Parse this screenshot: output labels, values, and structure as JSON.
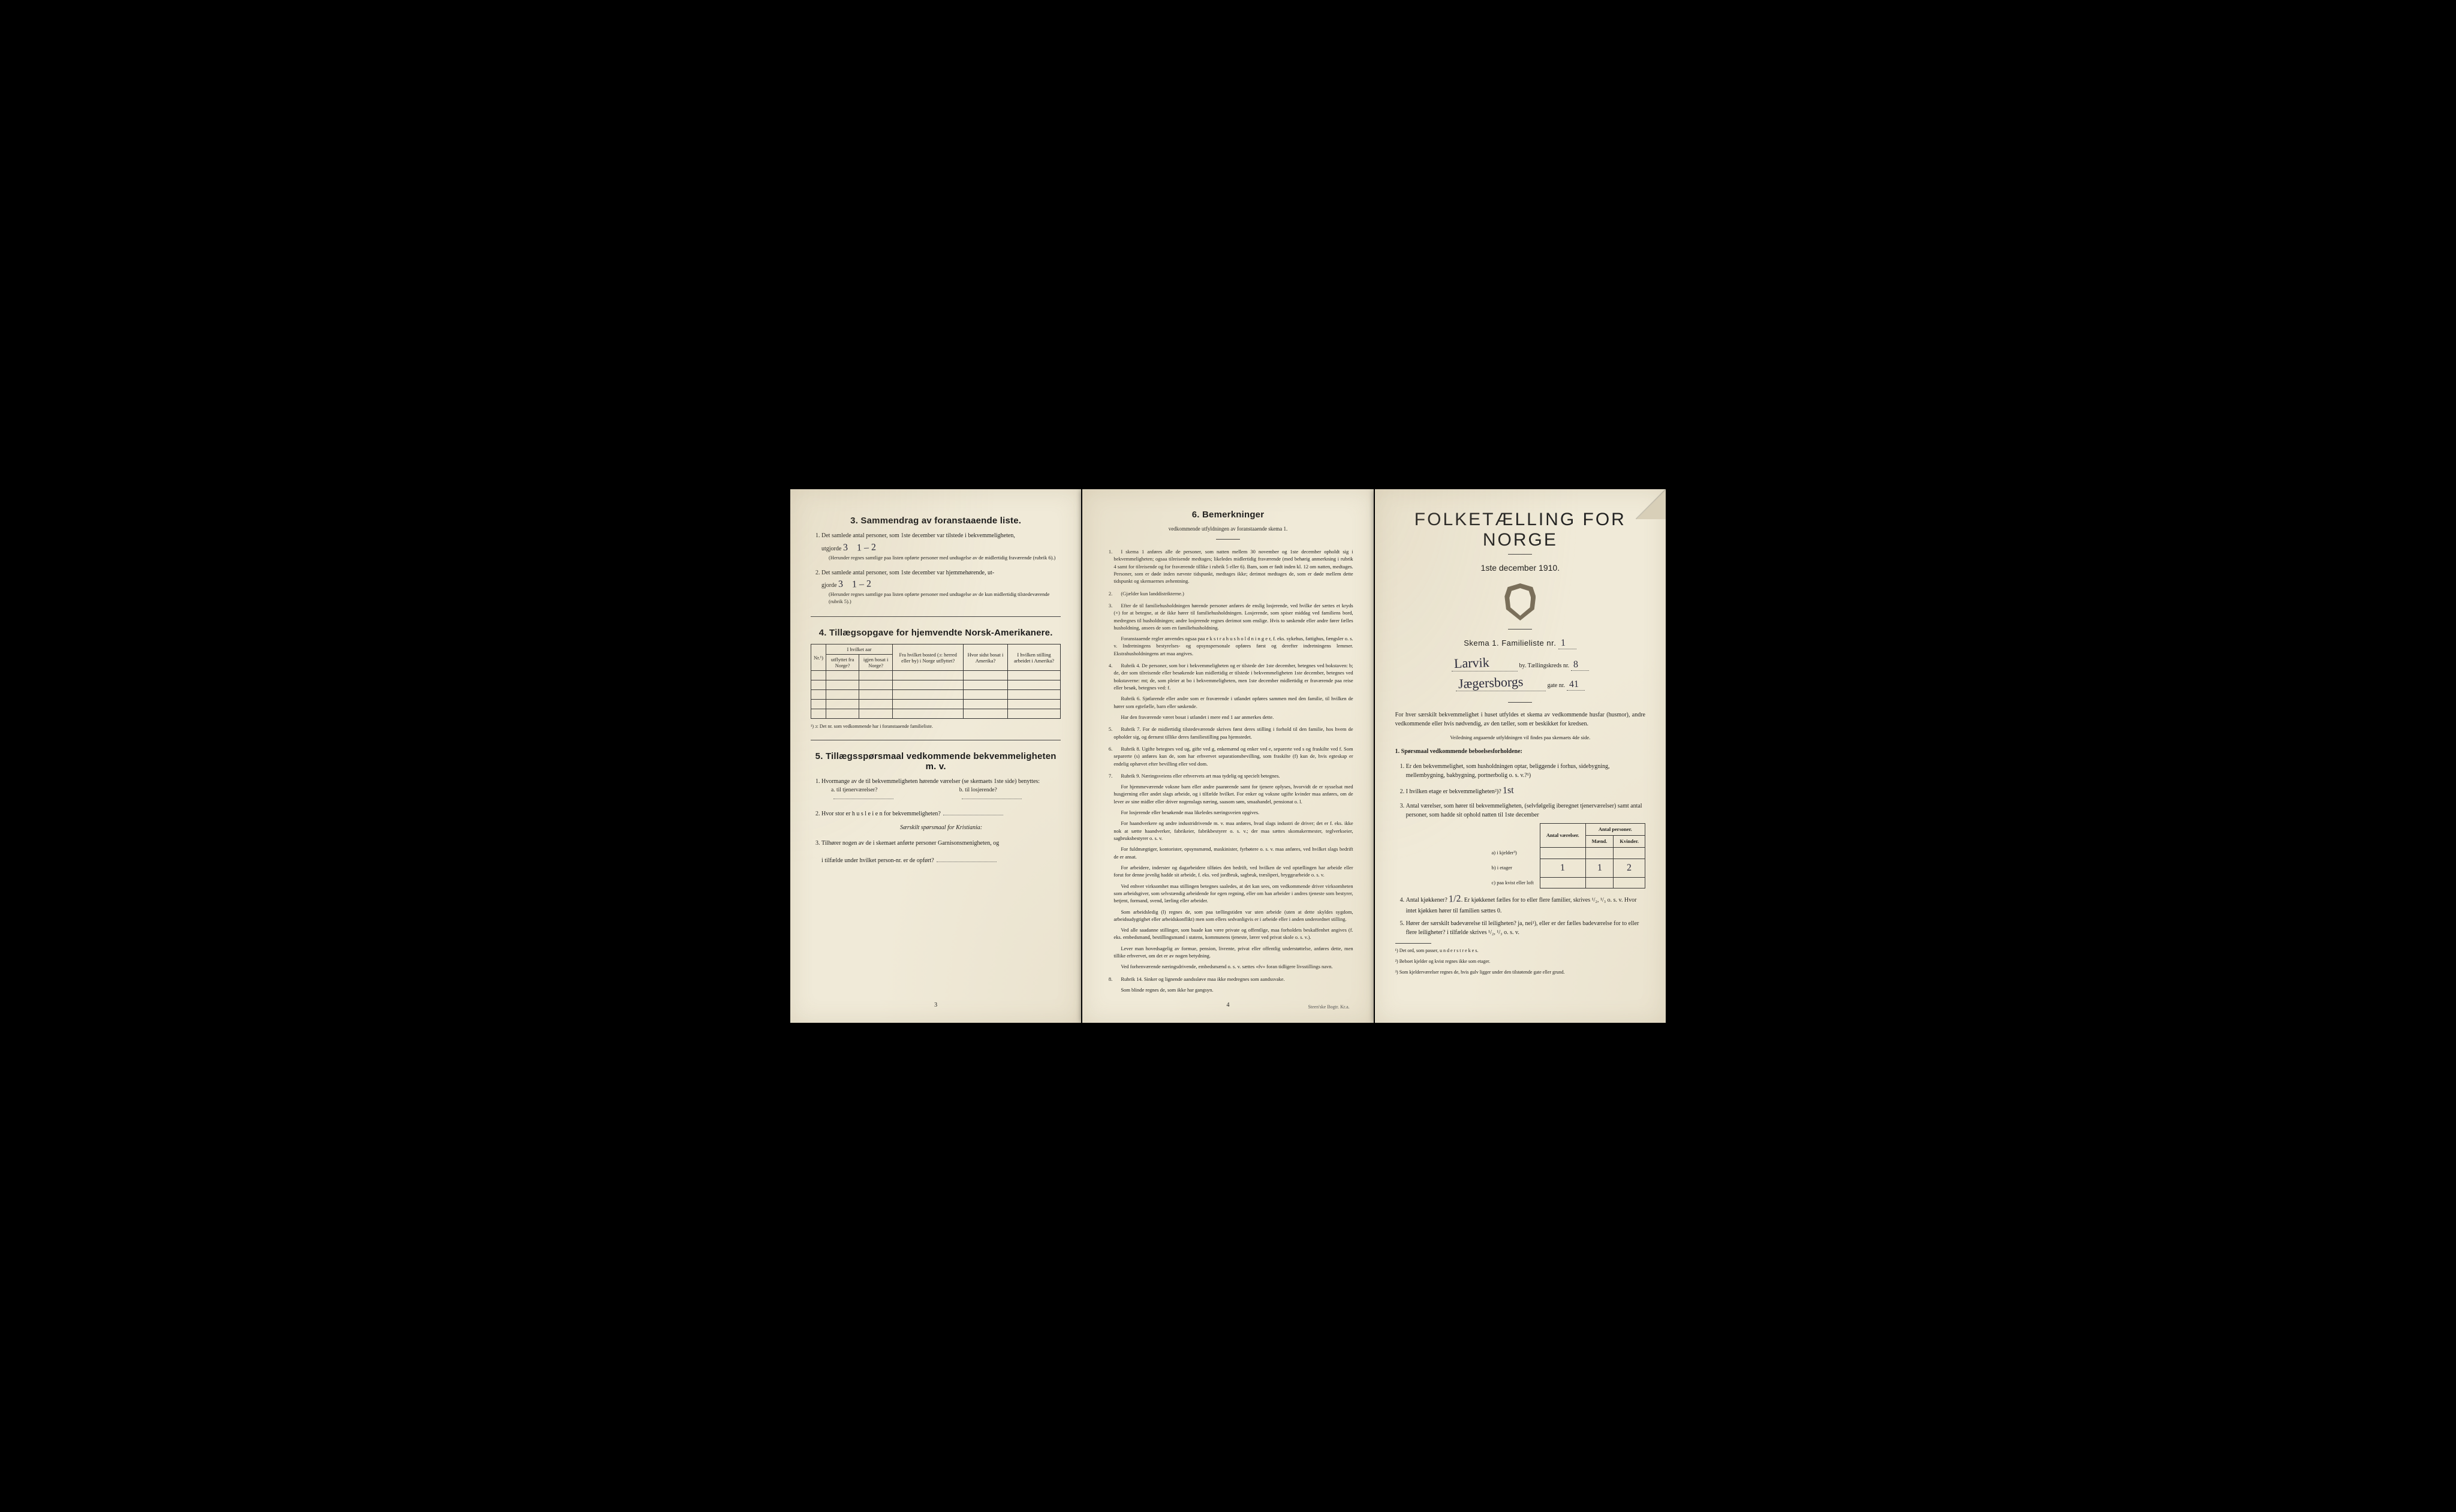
{
  "page_left": {
    "section3": {
      "title": "3.   Sammendrag av foranstaaende liste.",
      "item1": "Det samlede antal personer, som 1ste december var tilstede i bekvemmeligheten,",
      "item1b": "utgjorde",
      "hw1_num": "3",
      "hw1_range": "1 – 2",
      "item1_note": "(Herunder regnes samtlige paa listen opførte personer med undtagelse av de midlertidig fraværende (rubrik 6).)",
      "item2": "Det samlede antal personer, som 1ste december var hjemmehørende, ut-",
      "item2b": "gjorde",
      "hw2_num": "3",
      "hw2_range": "1 – 2",
      "item2_note": "(Herunder regnes samtlige paa listen opførte personer med undtagelse av de kun midlertidig tilstedeværende (rubrik 5).)"
    },
    "section4": {
      "title": "4.   Tillægsopgave for hjemvendte Norsk-Amerikanere.",
      "col_nr": "Nr.¹)",
      "col_aar": "I hvilket aar",
      "col_utf": "utflyttet fra Norge?",
      "col_igjen": "igjen bosat i Norge?",
      "col_bosted": "Fra hvilket bosted (ɔ: herred eller by) i Norge utflyttet?",
      "col_sidst": "Hvor sidst bosat i Amerika?",
      "col_stilling": "I hvilken stilling arbeidet i Amerika?",
      "footnote": "¹) ɔ: Det nr. som vedkommende har i foranstaaende familieliste."
    },
    "section5": {
      "title": "5.   Tillægsspørsmaal vedkommende bekvemmeligheten m. v.",
      "q1": "Hvormange av de til bekvemmeligheten hørende værelser (se skemaets 1ste side) benyttes:",
      "q1a": "a. til tjenerværelser?",
      "q1b": "b. til losjerende?",
      "q2": "Hvor stor er h u s l e i e n for bekvemmeligheten?",
      "q2_note": "Særskilt spørsmaal for Kristiania:",
      "q3": "Tilhører nogen av de i skemaet anførte personer Garnisonsmenigheten, og",
      "q3b": "i tilfælde under hvilket person-nr. er de opført?"
    },
    "page_num": "3"
  },
  "page_center": {
    "title": "6.   Bemerkninger",
    "subtitle": "vedkommende utfyldningen av foranstaaende skema 1.",
    "items": [
      "I skema 1 anføres alle de personer, som natten mellem 30 november og 1ste december opholdt sig i bekvemmeligheten; ogsaa tilreisende medtages; likeledes midlertidig fraværende (med behørig anmerkning i rubrik 4 samt for tilreisende og for fraværende tillike i rubrik 5 eller 6). Barn, som er født inden kl. 12 om natten, medtages. Personer, som er døde inden nævnte tidspunkt, medtages ikke; derimot medtages de, som er døde mellem dette tidspunkt og skemaernes avhentning.",
      "(Gjælder kun landdistrikterne.)",
      "Efter de til familiehusholdningen hørende personer anføres de enslig losjerende, ved hvilke der sættes et kryds (×) for at betegne, at de ikke hører til familiehusholdningen. Losjerende, som spiser middag ved familiens bord, medregnes til husholdningen; andre losjerende regnes derimot som enslige. Hvis to søskende eller andre fører fælles husholdning, ansees de som en familiehusholdning.\nForanstaaende regler anvendes ogsaa paa e k s t r a h u s h o l d n i n g e r, f. eks. sykehus, fattighus, fængsler o. s. v. Indretningens bestyrelses- og opsynspersonale opføres først og derefter indretningens lemmer. Ekstrahusholdningens art maa angives.",
      "Rubrik 4. De personer, som bor i bekvemmeligheten og er tilstede der 1ste december, betegnes ved bokstaven: b; de, der som tilreisende eller besøkende kun midlertidig er tilstede i bekvemmeligheten 1ste december, betegnes ved bokstaverne: mt; de, som pleier at bo i bekvemmeligheten, men 1ste december midlertidig er fraværende paa reise eller besøk, betegnes ved: f.\nRubrik 6. Sjøfarende eller andre som er fraværende i utlandet opføres sammen med den familie, til hvilken de hører som egtefælle, barn eller søskende.\nHar den fraværende været bosat i utlandet i mere end 1 aar anmerkes dette.",
      "Rubrik 7. For de midlertidig tilstedeværende skrives først deres stilling i forhold til den familie, hos hvem de opholder sig, og dernæst tillike deres familiestilling paa hjemstedet.",
      "Rubrik 8. Ugifte betegnes ved ug, gifte ved g, enkemænd og enker ved e, separerte ved s og fraskilte ved f. Som separerte (s) anføres kun de, som har erhvervet separationsbevilling, som fraskilte (f) kun de, hvis egteskap er endelig ophævet efter bevilling eller ved dom.",
      "Rubrik 9. Næringsveiens eller erhvervets art maa tydelig og specielt betegnes.\nFor hjemmeværende voksne barn eller andre paarørende samt for tjenere oplyses, hvorvidt de er sysselsat med husgjerning eller andet slags arbeide, og i tilfælde hvilket. For enker og voksne ugifte kvinder maa anføres, om de lever av sine midler eller driver nogenslags næring, saasom søm, smaahandel, pensionat o. l.\nFor losjerende eller besøkende maa likeledes næringsveien opgives.\nFor haandverkere og andre industridrivende m. v. maa anføres, hvad slags industri de driver; det er f. eks. ikke nok at sætte haandverker, fabrikeier, fabrikbestyrer o. s. v.; der maa sættes skomakermester, teglverkseier, sagbruksbestyrer o. s. v.\nFor fuldmægtiger, kontorister, opsynsmænd, maskinister, fyrbøtere o. s. v. maa anføres, ved hvilket slags bedrift de er ansat.\nFor arbeidere, inderster og dagarbeidere tilføies den bedrift, ved hvilken de ved optællingen har arbeide eller forut for denne jevnlig hadde sit arbeide, f. eks. ved jordbruk, sagbruk, træsliperi, bryggearbeide o. s. v.\nVed enhver virksomhet maa stillingen betegnes saaledes, at det kan sees, om vedkommende driver virksomheten som arbeidsgiver, som selvstændig arbeidende for egen regning, eller om han arbeider i andres tjeneste som bestyrer, betjent, formand, svend, lærling eller arbeider.\nSom arbeidsledig (l) regnes de, som paa tællingstiden var uten arbeide (uten at dette skyldes sygdom, arbeidsudygtighet eller arbeidskonflikt) men som ellers sedvanligvis er i arbeide eller i anden underordnet stilling.\nVed alle saadanne stillinger, som baade kan være private og offentlige, maa forholdets beskaffenhet angives (f. eks. embedsmand, bestillingsmand i statens, kommunens tjeneste, lærer ved privat skole o. s. v.).\nLever man hovedsagelig av formue, pension, livrente, privat eller offentlig understøttelse, anføres dette, men tillike erhvervet, om det er av nogen betydning.\nVed forhenværende næringsdrivende, embedsmænd o. s. v. sættes «fv» foran tidligere livsstillings navn.",
      "Rubrik 14. Sinker og lignende aandssløve maa ikke medregnes som aandssvake.\nSom blinde regnes de, som ikke har gangsyn."
    ],
    "page_num": "4",
    "printer": "Steen'ske Bogtr.   Kr.a."
  },
  "page_right": {
    "title": "FOLKETÆLLING FOR NORGE",
    "date": "1ste december 1910.",
    "skema_label": "Skema 1.   Familieliste nr.",
    "skema_hw": "1",
    "city_hw": "Larvik",
    "city_suffix": "by.   Tællingskreds nr.",
    "kreds_hw": "8",
    "street_hw": "Jægersborgs",
    "street_suffix": "gate nr.",
    "gate_hw": "41",
    "intro": "For hver særskilt bekvemmelighet i huset utfyldes et skema av vedkommende husfar (husmor), andre vedkommende eller hvis nødvendig, av den tæller, som er beskikket for kredsen.",
    "intro2": "Veiledning angaaende utfyldningen vil findes paa skemaets 4de side.",
    "q1_head": "1. Spørsmaal vedkommende beboelsesforholdene:",
    "q1_1": "Er den bekvemmelighet, som husholdningen optar, beliggende i forhus, sidebygning, mellembygning, bakbygning, portnerbolig o. s. v.?¹)",
    "q1_2": "I hvilken etage er bekvemmeligheten²)?",
    "q1_2_hw": "1st",
    "q1_3": "Antal værelser, som hører til bekvemmeligheten, (selvfølgelig iberegnet tjenerværelser) samt antal personer, som hadde sit ophold natten til 1ste december",
    "rooms": {
      "h_vaer": "Antal værelser.",
      "h_pers": "Antal personer.",
      "h_m": "Mænd.",
      "h_k": "Kvinder.",
      "row_a": "a) i kjelder³)",
      "row_b": "b) i etager",
      "row_c": "c) paa kvist eller loft",
      "val_b_vaer": "1",
      "val_b_m": "1",
      "val_b_k": "2"
    },
    "q1_4": "Antal kjøkkener?",
    "q1_4_hw": "1/2",
    "q1_4_rest": "Er kjøkkenet fælles for to eller flere familier, skrives ¹/₂, ¹/₃ o. s. v. Hvor intet kjøkken hører til familien sættes 0.",
    "q1_5": "Hører der særskilt badeværelse til leiligheten?  ja,  nei¹), eller er der fælles badeværelse for to eller flere leiligheter?  i tilfælde skrives ¹/₂, ¹/₃ o. s. v.",
    "fn1": "¹) Det ord, som passer, u n d e r s t r e k e s.",
    "fn2": "²) Beboet kjelder og kvist regnes ikke som etager.",
    "fn3": "³) Som kjelderværelser regnes de, hvis gulv ligger under den tilstøtende gate eller grund."
  }
}
